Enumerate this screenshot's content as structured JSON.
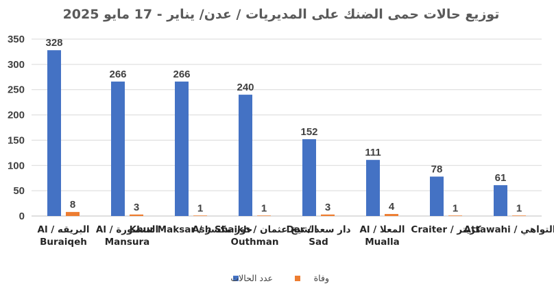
{
  "chart_data": {
    "type": "bar",
    "title": "توزيع حالات حمى الضنك على المديريات / عدن/ يناير - 17 مايو 2025",
    "categories": [
      [
        "البريقه / Al",
        "Buraiqeh"
      ],
      [
        "المنصورة / Al",
        "Mansura"
      ],
      [
        "خور مكسر / Khur Maksar"
      ],
      [
        "الشيخ عثمان / Ash Shaikh",
        "Outhman"
      ],
      [
        "دار سعد / Dar",
        "Sad"
      ],
      [
        "المعلا / Al",
        "Mualla"
      ],
      [
        "كريتر / Craiter"
      ],
      [
        "التواهي / Attawahi"
      ]
    ],
    "series": [
      {
        "name": "عدد الحالات",
        "color": "#4472C4",
        "values": [
          328,
          266,
          266,
          240,
          152,
          111,
          78,
          61
        ]
      },
      {
        "name": "وفاة",
        "color": "#ED7D31",
        "values": [
          8,
          3,
          1,
          1,
          3,
          4,
          1,
          1
        ]
      }
    ],
    "ylim": [
      0,
      350
    ],
    "yticks": [
      0,
      50,
      100,
      150,
      200,
      250,
      300,
      350
    ],
    "grid": true,
    "legend": "bottom"
  }
}
